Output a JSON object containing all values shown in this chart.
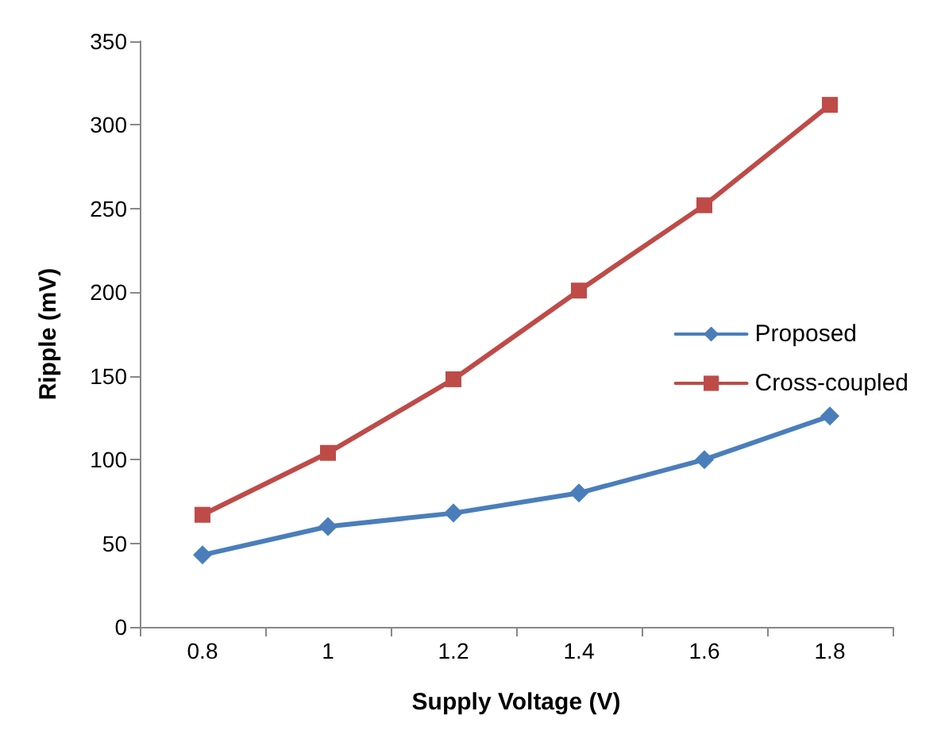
{
  "chart_data": {
    "type": "line",
    "xlabel": "Supply Voltage (V)",
    "ylabel": "Ripple (mV)",
    "categories": [
      "0.8",
      "1",
      "1.2",
      "1.4",
      "1.6",
      "1.8"
    ],
    "series": [
      {
        "name": "Proposed",
        "color": "#4a7ebb",
        "marker": "diamond",
        "values": [
          43,
          60,
          68,
          80,
          100,
          126
        ]
      },
      {
        "name": "Cross-coupled",
        "color": "#be4b48",
        "marker": "square",
        "values": [
          67,
          104,
          148,
          201,
          252,
          312
        ]
      }
    ],
    "ylim": [
      0,
      350
    ],
    "yticks": [
      0,
      50,
      100,
      150,
      200,
      250,
      300,
      350
    ],
    "grid": false,
    "legend": "right",
    "line_style": "solid"
  }
}
